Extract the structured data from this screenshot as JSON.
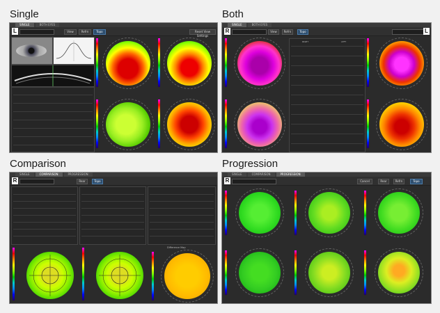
{
  "labels": {
    "single": "Single",
    "both": "Both",
    "comparison": "Comparison",
    "progression": "Progression"
  },
  "single": {
    "eye": "L",
    "tabs": [
      "SINGLE",
      "BOTH EYES"
    ],
    "buttons": [
      "View",
      "Refrn",
      "Topo"
    ],
    "settings": "Reset View Settings"
  },
  "both": {
    "eye_left": "R",
    "eye_right": "L",
    "tabs": [
      "SINGLE",
      "BOTH EYES"
    ],
    "buttons": [
      "View",
      "Refrn",
      "Topo"
    ],
    "table_headers": [
      "RIGHT",
      "LEFT"
    ]
  },
  "comparison": {
    "eye": "R",
    "tabs": [
      "SINGLE",
      "COMPARISON",
      "PROGRESSION"
    ],
    "buttons": [
      "Rear",
      "Topo"
    ],
    "panels": [
      "Difference Map"
    ]
  },
  "progression": {
    "eye": "R",
    "tabs": [
      "SINGLE",
      "COMPARISON",
      "PROGRESSION"
    ],
    "buttons": [
      "Cancel",
      "Rear",
      "Refrn",
      "Topo"
    ]
  },
  "colors": {
    "bg": "#f1f1f1",
    "screen": "#2b2b2b",
    "accent": "#2e4e6e"
  }
}
